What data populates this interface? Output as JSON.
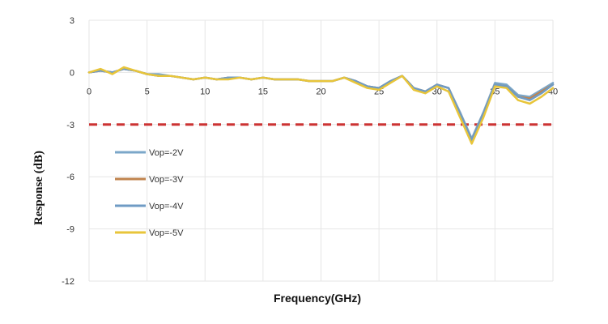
{
  "chart_data": {
    "type": "line",
    "xlabel": "Frequency(GHz)",
    "ylabel": "Response (dB)",
    "xlim": [
      0,
      40
    ],
    "ylim": [
      -12,
      3
    ],
    "xticks": [
      0,
      5,
      10,
      15,
      20,
      25,
      30,
      35,
      40
    ],
    "yticks": [
      3,
      0,
      -3,
      -6,
      -9,
      -12
    ],
    "grid": true,
    "legend_position": "left",
    "reference_line": {
      "y": -3,
      "color": "#cc3333",
      "style": "dashed"
    },
    "series": [
      {
        "name": "Vop=-2V",
        "color": "#7ba7c9",
        "x": [
          0,
          1,
          2,
          3,
          4,
          5,
          6,
          7,
          8,
          9,
          10,
          11,
          12,
          13,
          14,
          15,
          16,
          17,
          18,
          19,
          20,
          21,
          22,
          23,
          24,
          25,
          26,
          27,
          28,
          29,
          30,
          31,
          32,
          33,
          34,
          35,
          36,
          37,
          38,
          39,
          40
        ],
        "y": [
          0.0,
          0.1,
          0.0,
          0.2,
          0.1,
          -0.1,
          -0.1,
          -0.2,
          -0.3,
          -0.4,
          -0.3,
          -0.4,
          -0.3,
          -0.3,
          -0.4,
          -0.3,
          -0.4,
          -0.4,
          -0.4,
          -0.5,
          -0.5,
          -0.5,
          -0.3,
          -0.5,
          -0.8,
          -0.9,
          -0.5,
          -0.2,
          -0.9,
          -1.1,
          -0.7,
          -0.9,
          -2.3,
          -3.8,
          -2.3,
          -0.6,
          -0.7,
          -1.3,
          -1.4,
          -1.0,
          -0.6
        ]
      },
      {
        "name": "Vop=-3V",
        "color": "#c0834d",
        "x": [
          0,
          1,
          2,
          3,
          4,
          5,
          6,
          7,
          8,
          9,
          10,
          11,
          12,
          13,
          14,
          15,
          16,
          17,
          18,
          19,
          20,
          21,
          22,
          23,
          24,
          25,
          26,
          27,
          28,
          29,
          30,
          31,
          32,
          33,
          34,
          35,
          36,
          37,
          38,
          39,
          40
        ],
        "y": [
          0.0,
          0.1,
          0.0,
          0.2,
          0.1,
          -0.1,
          -0.2,
          -0.2,
          -0.3,
          -0.4,
          -0.3,
          -0.4,
          -0.3,
          -0.3,
          -0.4,
          -0.3,
          -0.4,
          -0.4,
          -0.4,
          -0.5,
          -0.5,
          -0.5,
          -0.3,
          -0.5,
          -0.8,
          -0.9,
          -0.5,
          -0.2,
          -0.9,
          -1.1,
          -0.7,
          -0.9,
          -2.4,
          -3.9,
          -2.4,
          -0.7,
          -0.8,
          -1.4,
          -1.5,
          -1.1,
          -0.7
        ]
      },
      {
        "name": "Vop=-4V",
        "color": "#6f9bc4",
        "x": [
          0,
          1,
          2,
          3,
          4,
          5,
          6,
          7,
          8,
          9,
          10,
          11,
          12,
          13,
          14,
          15,
          16,
          17,
          18,
          19,
          20,
          21,
          22,
          23,
          24,
          25,
          26,
          27,
          28,
          29,
          30,
          31,
          32,
          33,
          34,
          35,
          36,
          37,
          38,
          39,
          40
        ],
        "y": [
          0.0,
          0.1,
          0.0,
          0.2,
          0.1,
          -0.1,
          -0.2,
          -0.2,
          -0.3,
          -0.4,
          -0.3,
          -0.4,
          -0.3,
          -0.3,
          -0.4,
          -0.3,
          -0.4,
          -0.4,
          -0.4,
          -0.5,
          -0.5,
          -0.5,
          -0.3,
          -0.5,
          -0.8,
          -0.9,
          -0.5,
          -0.2,
          -0.9,
          -1.1,
          -0.7,
          -0.9,
          -2.4,
          -3.9,
          -2.4,
          -0.7,
          -0.8,
          -1.4,
          -1.6,
          -1.2,
          -0.7
        ]
      },
      {
        "name": "Vop=-5V",
        "color": "#e8c53a",
        "x": [
          0,
          1,
          2,
          3,
          4,
          5,
          6,
          7,
          8,
          9,
          10,
          11,
          12,
          13,
          14,
          15,
          16,
          17,
          18,
          19,
          20,
          21,
          22,
          23,
          24,
          25,
          26,
          27,
          28,
          29,
          30,
          31,
          32,
          33,
          34,
          35,
          36,
          37,
          38,
          39,
          40
        ],
        "y": [
          0.0,
          0.2,
          -0.1,
          0.3,
          0.1,
          -0.1,
          -0.2,
          -0.2,
          -0.3,
          -0.4,
          -0.3,
          -0.4,
          -0.4,
          -0.3,
          -0.4,
          -0.3,
          -0.4,
          -0.4,
          -0.4,
          -0.5,
          -0.5,
          -0.5,
          -0.3,
          -0.6,
          -0.9,
          -1.0,
          -0.6,
          -0.2,
          -1.0,
          -1.2,
          -0.8,
          -1.1,
          -2.6,
          -4.1,
          -2.6,
          -0.8,
          -0.9,
          -1.6,
          -1.8,
          -1.4,
          -0.9
        ]
      }
    ]
  }
}
